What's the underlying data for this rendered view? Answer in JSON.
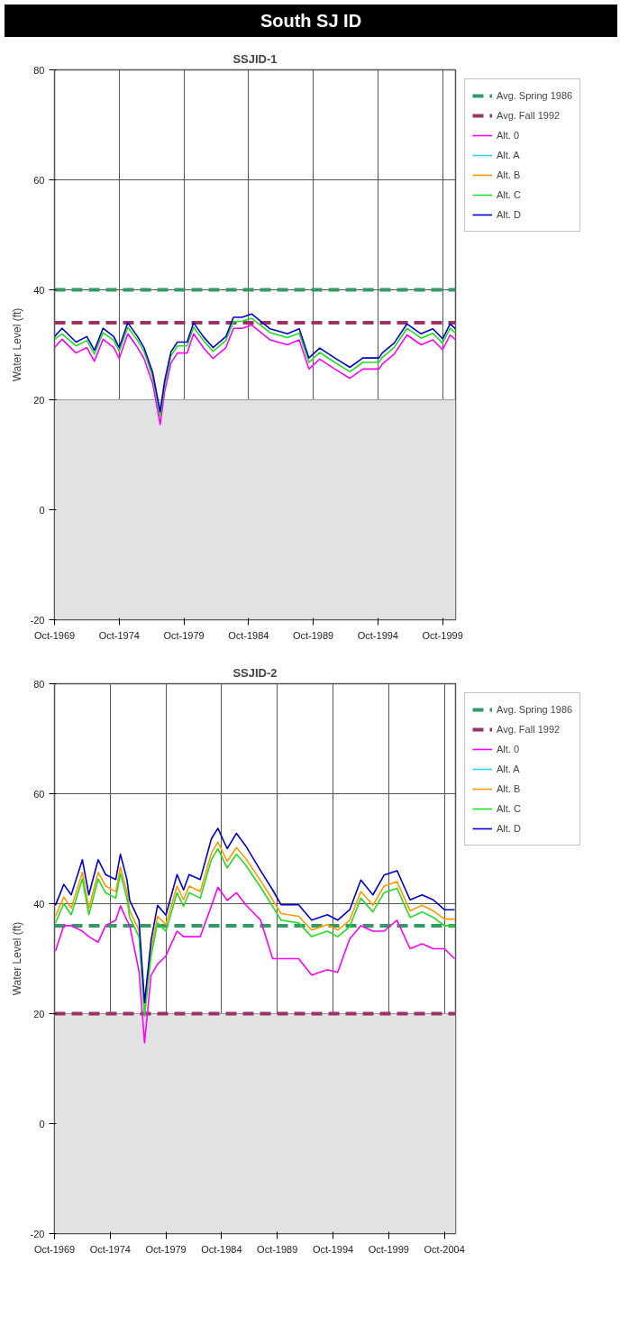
{
  "chart_data": [
    {
      "type": "line",
      "title": "South SJ ID",
      "subtitle": "SSJID-1",
      "ylabel": "Water Level (ft)",
      "xlim": [
        "1969-10",
        "2000-10"
      ],
      "ylim": [
        -20,
        80
      ],
      "yticks": [
        -20,
        0,
        20,
        40,
        60,
        80
      ],
      "xticks": [
        {
          "value": "1969-10",
          "label": "Oct-1969"
        },
        {
          "value": "1974-10",
          "label": "Oct-1974"
        },
        {
          "value": "1979-10",
          "label": "Oct-1979"
        },
        {
          "value": "1984-10",
          "label": "Oct-1984"
        },
        {
          "value": "1989-10",
          "label": "Oct-1989"
        },
        {
          "value": "1994-10",
          "label": "Oct-1994"
        },
        {
          "value": "1999-10",
          "label": "Oct-1999"
        }
      ],
      "grid": true,
      "legend": "right",
      "line_style": "solid",
      "bands": [
        {
          "axis": "y",
          "from": -20,
          "to": 20,
          "color": "#e2e2e2"
        }
      ],
      "x": [
        "1969-10",
        "1970-05",
        "1971-06",
        "1972-04",
        "1972-11",
        "1973-07",
        "1974-05",
        "1974-10",
        "1975-06",
        "1976-03",
        "1976-09",
        "1977-05",
        "1977-12",
        "1978-04",
        "1978-10",
        "1979-04",
        "1980-01",
        "1980-07",
        "1981-04",
        "1982-01",
        "1983-01",
        "1983-08",
        "1984-04",
        "1985-01",
        "1986-06",
        "1987-10",
        "1988-09",
        "1989-06",
        "1990-04",
        "1991-06",
        "1992-08",
        "1993-08",
        "1994-11",
        "1995-02",
        "1996-01",
        "1997-01",
        "1998-02",
        "1999-01",
        "1999-10",
        "2000-05",
        "2000-10"
      ],
      "series": [
        {
          "name": "Avg. Spring 1986",
          "color": "#339966",
          "line_style": "dashed",
          "x": [
            "1969-10",
            "2000-10"
          ],
          "values": [
            40,
            40
          ]
        },
        {
          "name": "Avg. Fall 1992",
          "color": "#993366",
          "line_style": "dashed",
          "x": [
            "1969-10",
            "2000-10"
          ],
          "values": [
            34,
            34
          ]
        },
        {
          "name": "Alt. 0",
          "color": "#ff00ff",
          "values": [
            29.5,
            31,
            28.5,
            29.5,
            27,
            31,
            29.5,
            27.5,
            32,
            29.5,
            27.5,
            23,
            15.5,
            21.3,
            26.7,
            28.5,
            28.5,
            32,
            29.5,
            27.5,
            29.5,
            33,
            33,
            33.6,
            30.9,
            30,
            30.9,
            25.6,
            27.4,
            25.6,
            23.9,
            25.6,
            25.6,
            26.5,
            28.3,
            31.8,
            30,
            30.9,
            29.1,
            31.8,
            30.9
          ]
        },
        {
          "name": "Alt. A",
          "color": "#33ccff",
          "values": [
            null,
            null,
            null,
            null,
            null,
            null,
            null,
            null,
            null,
            null,
            null,
            null,
            null,
            null,
            null,
            null,
            null,
            null,
            null,
            null,
            null,
            null,
            null,
            null,
            null,
            null,
            null,
            null,
            null,
            null,
            null,
            null,
            null,
            null,
            null,
            null,
            null,
            null,
            null,
            null,
            null
          ]
        },
        {
          "name": "Alt. B",
          "color": "#ff9900",
          "values": [
            null,
            null,
            null,
            null,
            null,
            null,
            null,
            null,
            null,
            null,
            null,
            null,
            null,
            null,
            null,
            null,
            null,
            null,
            null,
            null,
            null,
            null,
            null,
            null,
            null,
            null,
            null,
            null,
            null,
            null,
            null,
            null,
            null,
            null,
            null,
            null,
            null,
            null,
            null,
            null,
            null
          ]
        },
        {
          "name": "Alt. C",
          "color": "#22dd22",
          "values": [
            31,
            32,
            29.8,
            30.8,
            28.3,
            32.2,
            30.8,
            28.8,
            33.2,
            30.8,
            28.8,
            24.2,
            17,
            22.5,
            28,
            29.8,
            29.8,
            33.2,
            30.8,
            28.8,
            30.8,
            34.2,
            34.3,
            34.8,
            32.2,
            31.3,
            32.1,
            26.8,
            28.6,
            26.8,
            25.1,
            26.8,
            26.8,
            27.7,
            29.5,
            33,
            31.2,
            32.1,
            30.3,
            33,
            32.1
          ]
        },
        {
          "name": "Alt. D",
          "color": "#0000cc",
          "values": [
            31.5,
            33,
            30.5,
            31.5,
            29,
            33,
            31.5,
            29.5,
            34,
            31.5,
            29.5,
            25,
            17.8,
            23.3,
            28.7,
            30.5,
            30.5,
            34,
            31.5,
            29.5,
            31.5,
            35,
            35,
            35.6,
            32.9,
            32,
            32.9,
            27.6,
            29.4,
            27.6,
            25.9,
            27.6,
            27.6,
            28.5,
            30.3,
            33.8,
            32,
            32.9,
            31.1,
            33.8,
            32.9
          ]
        }
      ]
    },
    {
      "type": "line",
      "subtitle": "SSJID-2",
      "ylabel": "Water Level (ft)",
      "xlim": [
        "1969-10",
        "2005-10"
      ],
      "ylim": [
        -20,
        80
      ],
      "yticks": [
        -20,
        0,
        20,
        40,
        60,
        80
      ],
      "xticks": [
        {
          "value": "1969-10",
          "label": "Oct-1969"
        },
        {
          "value": "1974-10",
          "label": "Oct-1974"
        },
        {
          "value": "1979-10",
          "label": "Oct-1979"
        },
        {
          "value": "1984-10",
          "label": "Oct-1984"
        },
        {
          "value": "1989-10",
          "label": "Oct-1989"
        },
        {
          "value": "1994-10",
          "label": "Oct-1994"
        },
        {
          "value": "1999-10",
          "label": "Oct-1999"
        },
        {
          "value": "2004-10",
          "label": "Oct-2004"
        }
      ],
      "grid": true,
      "legend": "right",
      "line_style": "solid",
      "bands": [
        {
          "axis": "y",
          "from": -20,
          "to": 20,
          "color": "#e2e2e2"
        }
      ],
      "x": [
        "1969-11",
        "1970-08",
        "1971-04",
        "1972-04",
        "1972-11",
        "1973-09",
        "1974-05",
        "1975-04",
        "1975-09",
        "1976-04",
        "1976-07",
        "1977-05",
        "1977-11",
        "1978-06",
        "1979-01",
        "1979-10",
        "1980-10",
        "1981-05",
        "1981-11",
        "1982-11",
        "1983-11",
        "1984-06",
        "1985-04",
        "1986-02",
        "1986-12",
        "1988-04",
        "1989-05",
        "1990-02",
        "1991-09",
        "1992-11",
        "1994-04",
        "1995-03",
        "1996-04",
        "1997-04",
        "1998-05",
        "1999-05",
        "2000-07",
        "2001-09",
        "2002-10",
        "2003-10",
        "2004-10",
        "2005-09"
      ],
      "series": [
        {
          "name": "Avg. Spring 1986",
          "color": "#339966",
          "line_style": "dashed",
          "x": [
            "1969-10",
            "2005-10"
          ],
          "values": [
            36,
            36
          ]
        },
        {
          "name": "Avg. Fall 1992",
          "color": "#993366",
          "line_style": "dashed",
          "x": [
            "1969-10",
            "2005-10"
          ],
          "values": [
            20,
            20
          ]
        },
        {
          "name": "Alt. 0",
          "color": "#ff00ff",
          "values": [
            31.4,
            36,
            36,
            35,
            34,
            33,
            36,
            37,
            39.6,
            37,
            36,
            27.7,
            14.7,
            27,
            29,
            30.5,
            35,
            34,
            34,
            34,
            39.6,
            43,
            40.6,
            42,
            39.8,
            37,
            30,
            30,
            30,
            27,
            28,
            27.5,
            33.6,
            36,
            35,
            35,
            37,
            31.8,
            32.7,
            31.8,
            31.8,
            30
          ]
        },
        {
          "name": "Alt. A",
          "color": "#33ccff",
          "values": [
            null,
            null,
            null,
            null,
            null,
            null,
            null,
            null,
            null,
            null,
            null,
            null,
            null,
            null,
            null,
            null,
            null,
            null,
            null,
            null,
            null,
            null,
            null,
            null,
            null,
            null,
            null,
            null,
            null,
            null,
            null,
            null,
            null,
            null,
            null,
            null,
            null,
            null,
            null,
            null,
            null,
            null
          ]
        },
        {
          "name": "Alt. B",
          "color": "#ff9900",
          "values": [
            37.7,
            41.2,
            39.2,
            45.7,
            39.2,
            45.7,
            43.2,
            42.2,
            46.7,
            42.2,
            38.7,
            35.2,
            20.7,
            31.7,
            37.7,
            36.2,
            43.2,
            40.7,
            43.2,
            42.2,
            49.2,
            51.2,
            47.7,
            50.2,
            48.2,
            44.2,
            40.7,
            38.2,
            37.7,
            35.2,
            36.2,
            35.2,
            37,
            42.2,
            39.7,
            43.2,
            44,
            38.7,
            39.7,
            38.7,
            37.2,
            37.2
          ]
        },
        {
          "name": "Alt. C",
          "color": "#22dd22",
          "values": [
            36.5,
            40,
            38,
            44.5,
            38,
            44.5,
            42,
            41,
            45.5,
            41,
            37.5,
            34,
            19.5,
            30.5,
            36.5,
            35,
            42,
            39.5,
            42,
            41,
            48,
            50,
            46.5,
            49,
            47,
            43,
            39.5,
            37,
            36.5,
            34,
            35,
            34,
            35.8,
            41,
            38.5,
            42,
            42.8,
            37.5,
            38.5,
            37.5,
            36,
            36
          ]
        },
        {
          "name": "Alt. D",
          "color": "#0000cc",
          "values": [
            39.7,
            43.5,
            41.6,
            48,
            41.6,
            48,
            45.3,
            44.4,
            49,
            44.4,
            40.6,
            37,
            22,
            33.3,
            39.7,
            37.9,
            45.3,
            42.5,
            45.3,
            44.4,
            51.8,
            53.7,
            50,
            52.8,
            50.5,
            46,
            42.5,
            39.8,
            39.8,
            37,
            38,
            37,
            38.9,
            44.3,
            41.6,
            45.2,
            46,
            40.7,
            41.6,
            40.7,
            38.9,
            38.9
          ]
        }
      ]
    }
  ]
}
